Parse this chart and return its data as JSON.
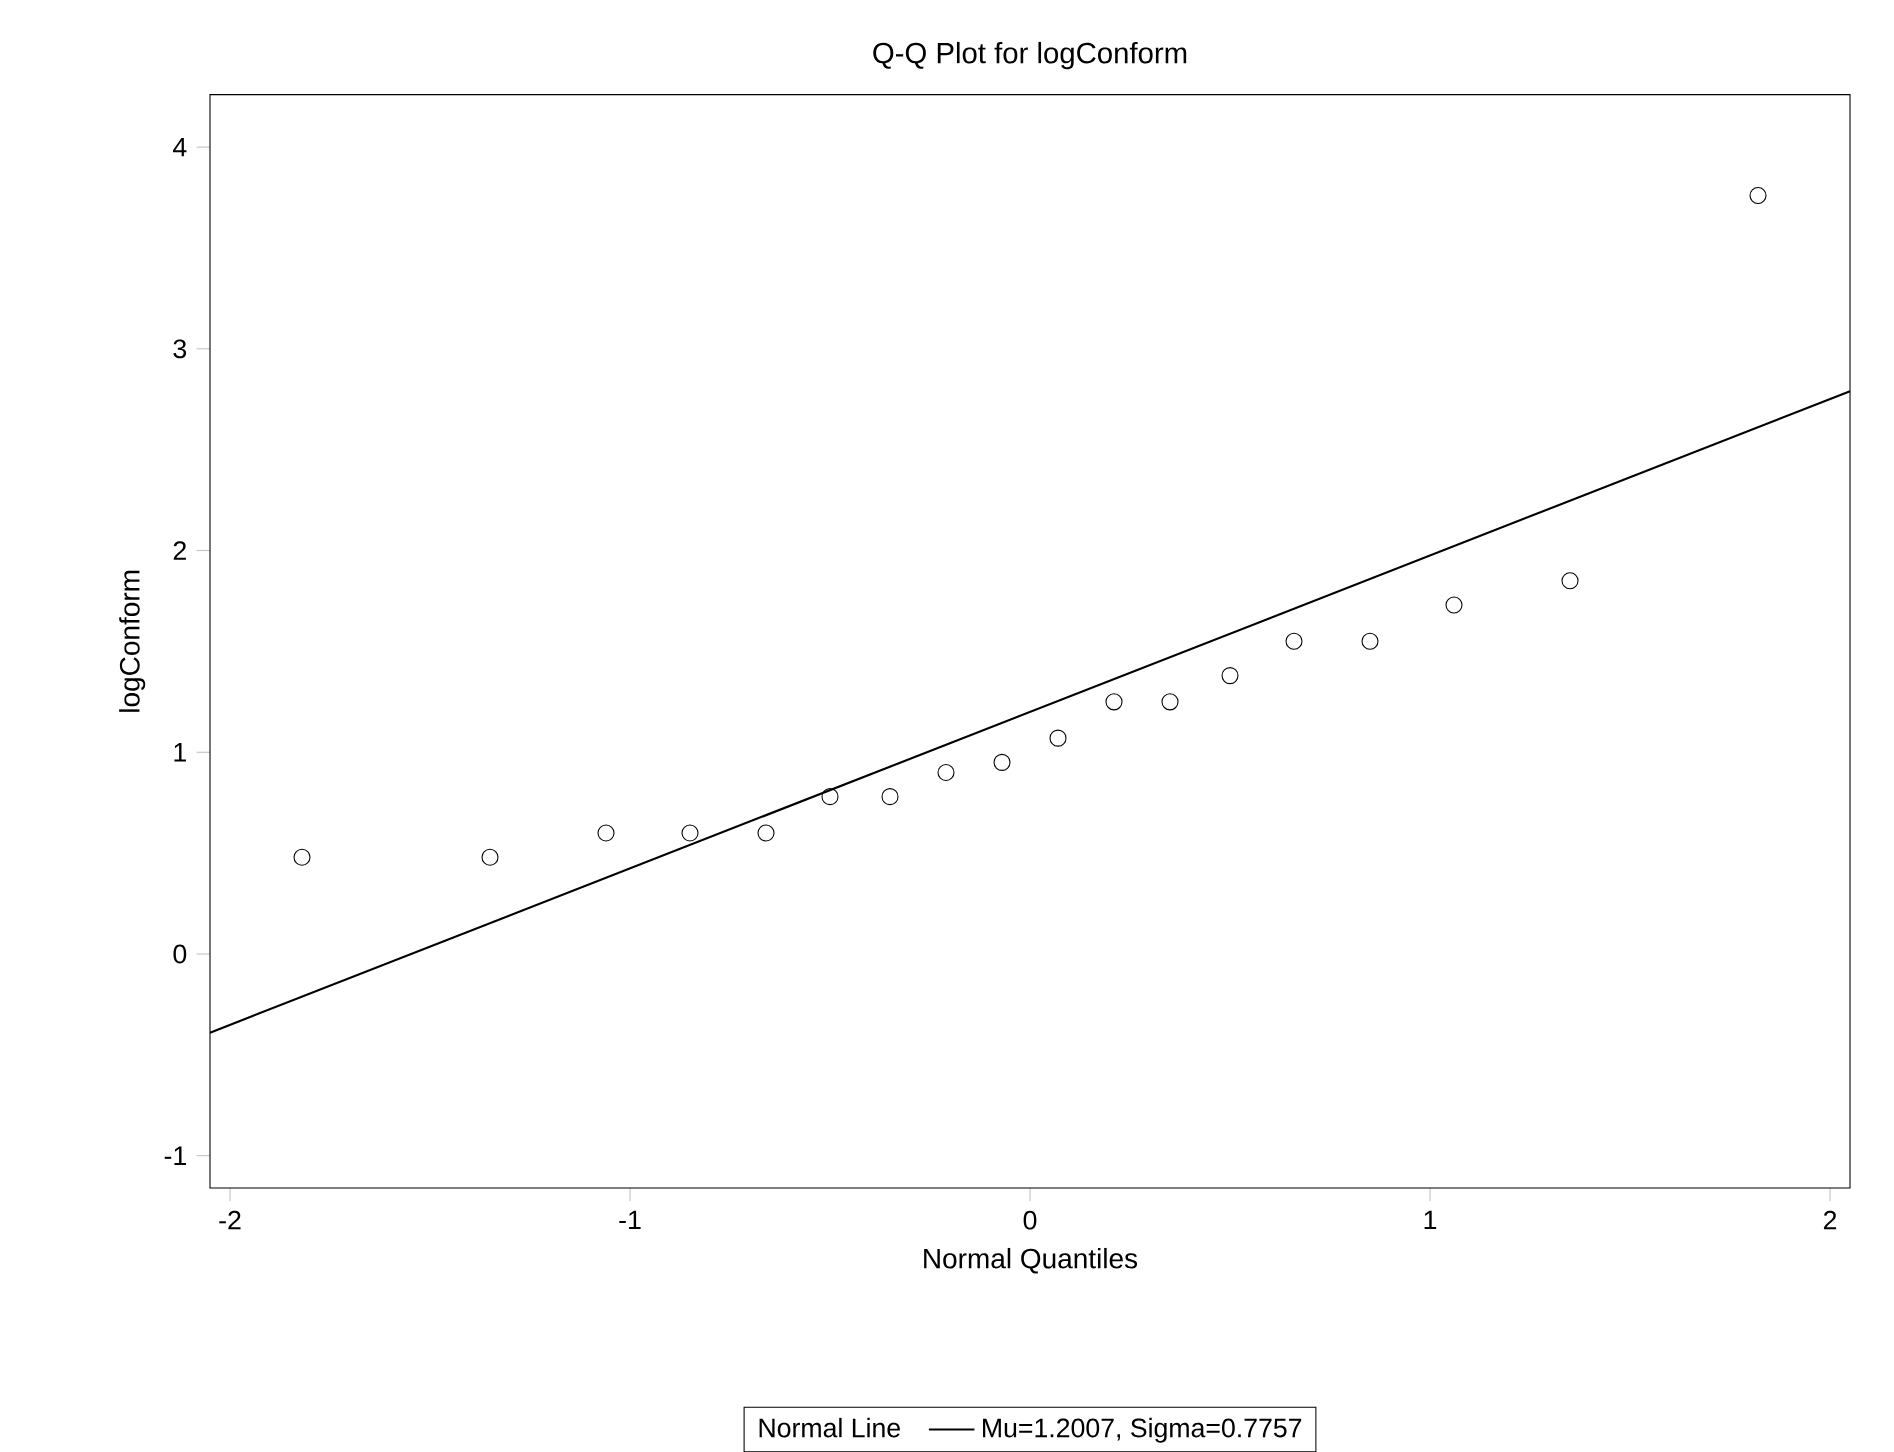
{
  "chart_data": {
    "type": "scatter",
    "title": "Q-Q Plot for logConform",
    "xlabel": "Normal Quantiles",
    "ylabel": "logConform",
    "legend_title": "Normal Line",
    "x": [
      -1.82,
      -1.35,
      -1.06,
      -0.85,
      -0.66,
      -0.5,
      -0.35,
      -0.21,
      -0.07,
      0.07,
      0.21,
      0.35,
      0.5,
      0.66,
      0.85,
      1.06,
      1.35,
      1.82
    ],
    "series": [
      {
        "color": "#000000",
        "marker": "circle",
        "values": [
          0.48,
          0.48,
          0.6,
          0.6,
          0.6,
          0.78,
          0.78,
          0.9,
          0.95,
          1.07,
          1.25,
          1.25,
          1.38,
          1.55,
          1.55,
          1.73,
          1.85,
          3.76
        ]
      },
      {
        "type": "line",
        "name": "Mu=1.2007, Sigma=0.7757",
        "color": "#000000",
        "marker": "none",
        "line_style": "solid",
        "x": [
          -2.05,
          2.05
        ],
        "values": [
          -0.39,
          2.79
        ]
      }
    ],
    "xlim": [
      -2.05,
      2.05
    ],
    "ylim": [
      -1.16,
      4.26
    ],
    "xticks": [
      -2,
      -1,
      0,
      1,
      2
    ],
    "yticks": [
      -1,
      0,
      1,
      2,
      3,
      4
    ],
    "grid": false,
    "legend": "bottom"
  }
}
